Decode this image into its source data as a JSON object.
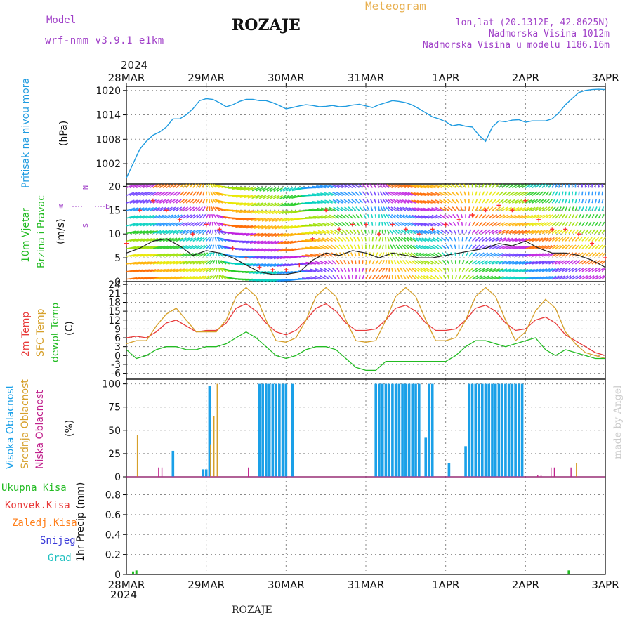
{
  "header": {
    "model_label": "Model",
    "model_name": "wrf-nmm_v3.9.1  e1km",
    "station": "ROZAJE",
    "product": "Meteogram",
    "coords": "lon,lat (20.1312E, 42.8625N)",
    "elevation": "Nadmorska Visina 1012m",
    "elevation_model": "Nadmorska Visina u modelu 1186.16m",
    "year_top": "2024",
    "year_bottom": "2024",
    "footer_station": "ROZAJE",
    "watermark": "made by Angel"
  },
  "colors": {
    "pressure": "#1e9be0",
    "temp2m": "#e83a3a",
    "sfc": "#d6a02a",
    "dewpt": "#22bb22",
    "cloud_high": "#1aa0e8",
    "cloud_mid": "#d6a02a",
    "cloud_low": "#c0208c",
    "wind_mean": "#222222",
    "wind_gust": "#ff3030",
    "precip_total": "#22bb22",
    "precip_conv": "#e83a3a",
    "precip_frz": "#ff7f1a",
    "precip_snow": "#3a3ad8",
    "precip_hail": "#20c0c0",
    "purple": "#a040c8"
  },
  "chart_data": [
    {
      "type": "line",
      "panel": "pressure",
      "label": "Pritisak na nivou mora",
      "unit": "(hPa)",
      "x_unit": "hours since 28MAR 00UTC",
      "xlim": [
        0,
        144
      ],
      "ylim": [
        997,
        1021
      ],
      "yticks": [
        1002,
        1008,
        1014,
        1020
      ],
      "grid": true,
      "x": [
        0,
        2,
        4,
        6,
        8,
        10,
        12,
        14,
        16,
        18,
        20,
        22,
        24,
        26,
        28,
        30,
        32,
        34,
        36,
        38,
        40,
        42,
        44,
        46,
        48,
        50,
        52,
        54,
        56,
        58,
        60,
        62,
        64,
        66,
        68,
        70,
        72,
        74,
        76,
        78,
        80,
        82,
        84,
        86,
        88,
        90,
        92,
        94,
        96,
        98,
        100,
        102,
        104,
        106,
        108,
        110,
        112,
        114,
        116,
        118,
        120,
        122,
        124,
        126,
        128,
        130,
        132,
        134,
        136,
        138,
        140,
        142,
        144
      ],
      "values": [
        998.5,
        1002,
        1005.5,
        1007.5,
        1009,
        1009.8,
        1011,
        1013,
        1013,
        1014,
        1015.5,
        1017.5,
        1018,
        1017.8,
        1017,
        1016,
        1016.5,
        1017.3,
        1017.8,
        1017.8,
        1017.5,
        1017.5,
        1017,
        1016.3,
        1015.5,
        1015.8,
        1016.2,
        1016.5,
        1016.3,
        1016,
        1016.1,
        1016.3,
        1016,
        1016.1,
        1016.4,
        1016.6,
        1016.2,
        1015.8,
        1016.5,
        1017,
        1017.5,
        1017.3,
        1017,
        1016.4,
        1015.5,
        1014.5,
        1013.5,
        1013,
        1012.3,
        1011.3,
        1011.6,
        1011.2,
        1011,
        1009,
        1007.5,
        1011,
        1012.5,
        1012.3,
        1012.7,
        1012.8,
        1012.2,
        1012.5,
        1012.5,
        1012.5,
        1013,
        1014.5,
        1016.5,
        1018,
        1019.5,
        1020,
        1020.2,
        1020.3,
        1020.2
      ],
      "unit_note": "hPa"
    },
    {
      "type": "line",
      "panel": "wind",
      "labels": [
        "10m Vjetar",
        "Brzina i Pravac"
      ],
      "unit": "(m/s)",
      "x_unit": "hours since 28MAR 00UTC",
      "xlim": [
        0,
        144
      ],
      "ylim": [
        0,
        20.5
      ],
      "yticks": [
        0,
        5,
        10,
        15,
        20
      ],
      "grid": true,
      "compass": {
        "w": "W",
        "s": "S",
        "n": "N",
        "e": "E"
      },
      "x": [
        0,
        4,
        8,
        12,
        16,
        20,
        24,
        28,
        32,
        36,
        40,
        44,
        48,
        52,
        56,
        60,
        64,
        68,
        72,
        76,
        80,
        84,
        88,
        92,
        96,
        100,
        104,
        108,
        112,
        116,
        120,
        124,
        128,
        132,
        136,
        140,
        144
      ],
      "series": [
        {
          "name": "mean",
          "values": [
            6,
            7,
            8.5,
            9,
            7.5,
            5.5,
            6.5,
            6,
            5,
            3.5,
            2,
            1.5,
            1.5,
            2,
            4.5,
            6,
            5.5,
            6.5,
            6,
            5,
            6,
            5.5,
            5,
            5,
            5.5,
            6,
            6.5,
            7,
            8,
            7.5,
            8.5,
            7,
            6,
            6,
            5.5,
            4.5,
            3
          ]
        },
        {
          "name": "gust",
          "values": [
            8,
            15,
            17,
            15,
            13,
            10,
            12,
            11,
            7,
            5,
            3,
            2.5,
            2.5,
            3.5,
            9,
            15,
            11,
            12,
            12,
            10,
            12,
            11,
            10,
            11,
            12,
            13,
            14,
            15,
            16,
            15,
            17,
            13,
            11,
            11,
            10,
            8,
            5
          ]
        }
      ],
      "arrow_direction_deg": [
        20,
        25,
        30,
        35,
        40,
        45,
        60,
        90,
        135,
        180,
        200,
        210,
        210,
        200,
        160,
        120,
        100,
        90,
        80,
        70,
        90,
        100,
        110,
        120,
        100,
        80,
        60,
        50,
        40,
        30,
        30,
        40,
        50,
        60,
        60,
        60,
        60
      ],
      "direction_unit": "degrees"
    },
    {
      "type": "line",
      "panel": "temperature",
      "labels": [
        "2m Temp",
        "SFC Temp",
        "dewpt Temp"
      ],
      "unit": "(C)",
      "x_unit": "hours since 28MAR 00UTC",
      "xlim": [
        0,
        144
      ],
      "ylim": [
        -8,
        25
      ],
      "yticks": [
        -6,
        -3,
        0,
        3,
        6,
        9,
        12,
        15,
        18,
        21,
        24
      ],
      "grid": true,
      "x": [
        0,
        3,
        6,
        9,
        12,
        15,
        18,
        21,
        24,
        27,
        30,
        33,
        36,
        39,
        42,
        45,
        48,
        51,
        54,
        57,
        60,
        63,
        66,
        69,
        72,
        75,
        78,
        81,
        84,
        87,
        90,
        93,
        96,
        99,
        102,
        105,
        108,
        111,
        114,
        117,
        120,
        123,
        126,
        129,
        132,
        135,
        138,
        141,
        144
      ],
      "series": [
        {
          "name": "2m Temp",
          "values": [
            6,
            6.5,
            6,
            8,
            11,
            12,
            10,
            8,
            8.5,
            8.5,
            11,
            16,
            17.5,
            15,
            11,
            8,
            7,
            8.5,
            12,
            16,
            17.5,
            15,
            11,
            8.5,
            8.5,
            9,
            12,
            16,
            17,
            15,
            11,
            8.5,
            8.5,
            9,
            12,
            16,
            17,
            15,
            11,
            8.5,
            9,
            12,
            13,
            11,
            7,
            5,
            3,
            1,
            0
          ]
        },
        {
          "name": "SFC Temp",
          "values": [
            4,
            5,
            5,
            10,
            14,
            16,
            12,
            8,
            8,
            8,
            12,
            20,
            23,
            20,
            12,
            5,
            4.5,
            6,
            12,
            20,
            23,
            20,
            12,
            5,
            4.5,
            5,
            12,
            20,
            23,
            20,
            12,
            5,
            5,
            6,
            12,
            20,
            23,
            20,
            12,
            5,
            8,
            15,
            19,
            16,
            8,
            4,
            1,
            0,
            -1
          ]
        },
        {
          "name": "dewpt Temp",
          "values": [
            2,
            -1,
            0,
            2,
            3,
            3,
            2,
            2,
            3,
            3,
            4,
            6,
            8,
            6,
            3,
            0,
            -1,
            0,
            2,
            3,
            3,
            2,
            -1,
            -4,
            -5,
            -5,
            -2,
            -2,
            -2,
            -2,
            -2,
            -2,
            -2,
            0,
            3,
            5,
            5,
            4,
            3,
            4,
            5,
            6,
            2,
            0,
            2,
            1,
            0,
            -1,
            -1
          ]
        }
      ]
    },
    {
      "type": "bar",
      "panel": "cloud",
      "labels": [
        "Visoka Oblacnost",
        "Srednja Oblacnost",
        "Niska Oblacnost"
      ],
      "unit": "(%)",
      "x_unit": "hours since 28MAR 00UTC",
      "xlim": [
        0,
        144
      ],
      "ylim": [
        0,
        105
      ],
      "yticks": [
        0,
        25,
        50,
        75,
        100
      ],
      "grid": true,
      "series": [
        {
          "name": "Visoka Oblacnost",
          "x": [
            14,
            23,
            24,
            25,
            40,
            41,
            42,
            43,
            44,
            45,
            46,
            47,
            48,
            50,
            75,
            76,
            77,
            78,
            79,
            80,
            81,
            82,
            83,
            84,
            85,
            86,
            87,
            88,
            90,
            91,
            92,
            97,
            102,
            103,
            104,
            105,
            106,
            107,
            108,
            109,
            110,
            111,
            112,
            113,
            114,
            115,
            116,
            117,
            118,
            119
          ],
          "values": [
            28,
            8,
            8,
            98,
            100,
            100,
            100,
            100,
            100,
            100,
            100,
            100,
            100,
            100,
            100,
            100,
            100,
            100,
            100,
            100,
            100,
            100,
            100,
            100,
            100,
            100,
            100,
            100,
            42,
            100,
            100,
            15,
            33,
            100,
            100,
            100,
            100,
            100,
            100,
            100,
            100,
            100,
            100,
            100,
            100,
            100,
            100,
            100,
            100,
            100
          ]
        },
        {
          "name": "Srednja Oblacnost",
          "x": [
            3,
            25,
            26,
            27,
            135
          ],
          "values": [
            45,
            35,
            65,
            100,
            15
          ]
        },
        {
          "name": "Niska Oblacnost",
          "x": [
            10,
            11,
            37,
            124,
            125,
            128,
            129,
            134
          ],
          "values": [
            10,
            10,
            10,
            2,
            2,
            10,
            10,
            10
          ]
        }
      ]
    },
    {
      "type": "bar",
      "panel": "precip",
      "labels": [
        "Ukupna Kisa",
        "Konvek.Kisa",
        "Zaledj.Kisa",
        "Snijeg",
        "Grad"
      ],
      "unit": "1hr Precip (mm)",
      "x_unit": "hours since 28MAR 00UTC",
      "xlim": [
        0,
        144
      ],
      "ylim": [
        0,
        0.98
      ],
      "yticks": [
        0,
        0.2,
        0.4,
        0.6,
        0.8
      ],
      "grid": true,
      "series": [
        {
          "name": "Ukupna Kisa",
          "x": [
            2,
            3,
            133
          ],
          "values": [
            0.03,
            0.04,
            0.04
          ]
        }
      ]
    }
  ],
  "axis": {
    "xtick_hours": [
      0,
      24,
      48,
      72,
      96,
      120,
      144
    ],
    "xtick_labels": [
      "28MAR",
      "29MAR",
      "30MAR",
      "31MAR",
      "1APR",
      "2APR",
      "3APR"
    ]
  }
}
